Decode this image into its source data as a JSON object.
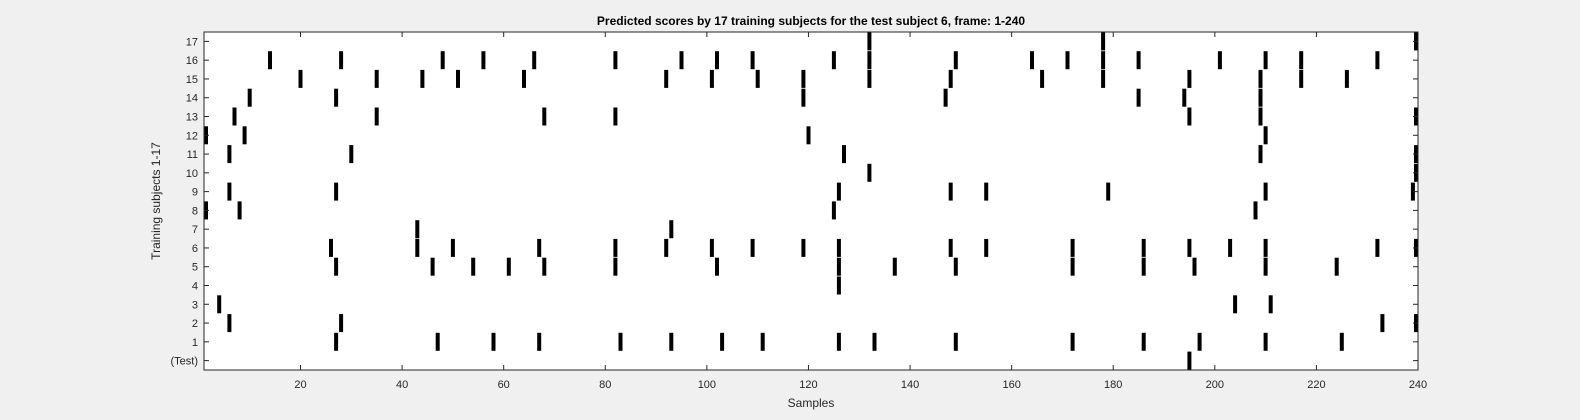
{
  "chart_data": {
    "type": "scatter",
    "title": "Predicted scores by 17 training subjects for the test subject 6, frame: 1-240",
    "xlabel": "Samples",
    "ylabel": "Training subjects 1-17",
    "xlim": [
      1,
      240
    ],
    "x_ticks": [
      "20",
      "40",
      "60",
      "80",
      "100",
      "120",
      "140",
      "160",
      "180",
      "200",
      "220",
      "240"
    ],
    "y_ticks": [
      "(Test)",
      "1",
      "2",
      "3",
      "4",
      "5",
      "6",
      "7",
      "8",
      "9",
      "10",
      "11",
      "12",
      "13",
      "14",
      "15",
      "16",
      "17"
    ],
    "grid": false,
    "marker": "black vertical bar",
    "segments": [
      {
        "row": "(Test)",
        "x": [
          195
        ]
      },
      {
        "row": "1",
        "x": [
          27,
          47,
          58,
          67,
          83,
          93,
          103,
          111,
          126,
          133,
          149,
          172,
          186,
          197,
          210,
          225
        ]
      },
      {
        "row": "2",
        "x": [
          6,
          28,
          233,
          240
        ]
      },
      {
        "row": "3",
        "x": [
          4,
          204,
          211
        ]
      },
      {
        "row": "4",
        "x": [
          126
        ]
      },
      {
        "row": "5",
        "x": [
          27,
          46,
          54,
          61,
          68,
          82,
          102,
          126,
          137,
          149,
          172,
          186,
          196,
          210,
          224
        ]
      },
      {
        "row": "6",
        "x": [
          26,
          43,
          50,
          67,
          82,
          92,
          101,
          109,
          119,
          126,
          148,
          155,
          172,
          186,
          195,
          203,
          210,
          232,
          240
        ]
      },
      {
        "row": "7",
        "x": [
          43,
          93
        ]
      },
      {
        "row": "8",
        "x": [
          1,
          8,
          125,
          208
        ]
      },
      {
        "row": "9",
        "x": [
          6,
          27,
          126,
          148,
          155,
          179,
          210,
          239
        ]
      },
      {
        "row": "10",
        "x": [
          132,
          240
        ]
      },
      {
        "row": "11",
        "x": [
          6,
          30,
          127,
          209,
          240
        ]
      },
      {
        "row": "12",
        "x": [
          1,
          9,
          120,
          210
        ]
      },
      {
        "row": "13",
        "x": [
          7,
          35,
          68,
          82,
          195,
          209,
          240
        ]
      },
      {
        "row": "14",
        "x": [
          10,
          27,
          119,
          147,
          185,
          194,
          209
        ]
      },
      {
        "row": "15",
        "x": [
          20,
          35,
          44,
          51,
          64,
          92,
          101,
          110,
          119,
          132,
          148,
          166,
          178,
          195,
          209,
          217,
          226
        ]
      },
      {
        "row": "16",
        "x": [
          14,
          28,
          48,
          56,
          66,
          82,
          95,
          102,
          109,
          125,
          132,
          149,
          164,
          171,
          178,
          185,
          201,
          210,
          217,
          232
        ]
      },
      {
        "row": "17",
        "x": [
          132,
          178,
          240
        ]
      }
    ]
  }
}
